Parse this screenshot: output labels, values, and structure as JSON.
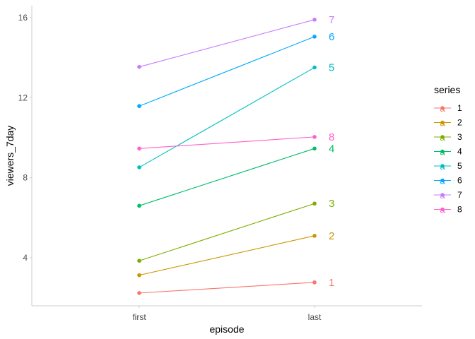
{
  "chart_data": {
    "type": "line",
    "xlabel": "episode",
    "ylabel": "viewers_7day",
    "categories": [
      "first",
      "last"
    ],
    "ylim": [
      1.6,
      16.6
    ],
    "yticks": [
      4,
      8,
      12,
      16
    ],
    "grid": false,
    "legend": {
      "title": "series",
      "position": "right"
    },
    "series": [
      {
        "name": "1",
        "color": "#F8766D",
        "values": [
          2.24,
          2.77
        ]
      },
      {
        "name": "2",
        "color": "#CD9600",
        "values": [
          3.13,
          5.1
        ]
      },
      {
        "name": "3",
        "color": "#7CAE00",
        "values": [
          3.85,
          6.71
        ]
      },
      {
        "name": "4",
        "color": "#00BE67",
        "values": [
          6.6,
          9.46
        ]
      },
      {
        "name": "5",
        "color": "#00BFC4",
        "values": [
          8.52,
          13.51
        ]
      },
      {
        "name": "6",
        "color": "#00A9FF",
        "values": [
          11.58,
          15.05
        ]
      },
      {
        "name": "7",
        "color": "#C77CFF",
        "values": [
          13.54,
          15.9
        ]
      },
      {
        "name": "8",
        "color": "#FF61CC",
        "values": [
          9.46,
          10.04
        ]
      }
    ]
  }
}
